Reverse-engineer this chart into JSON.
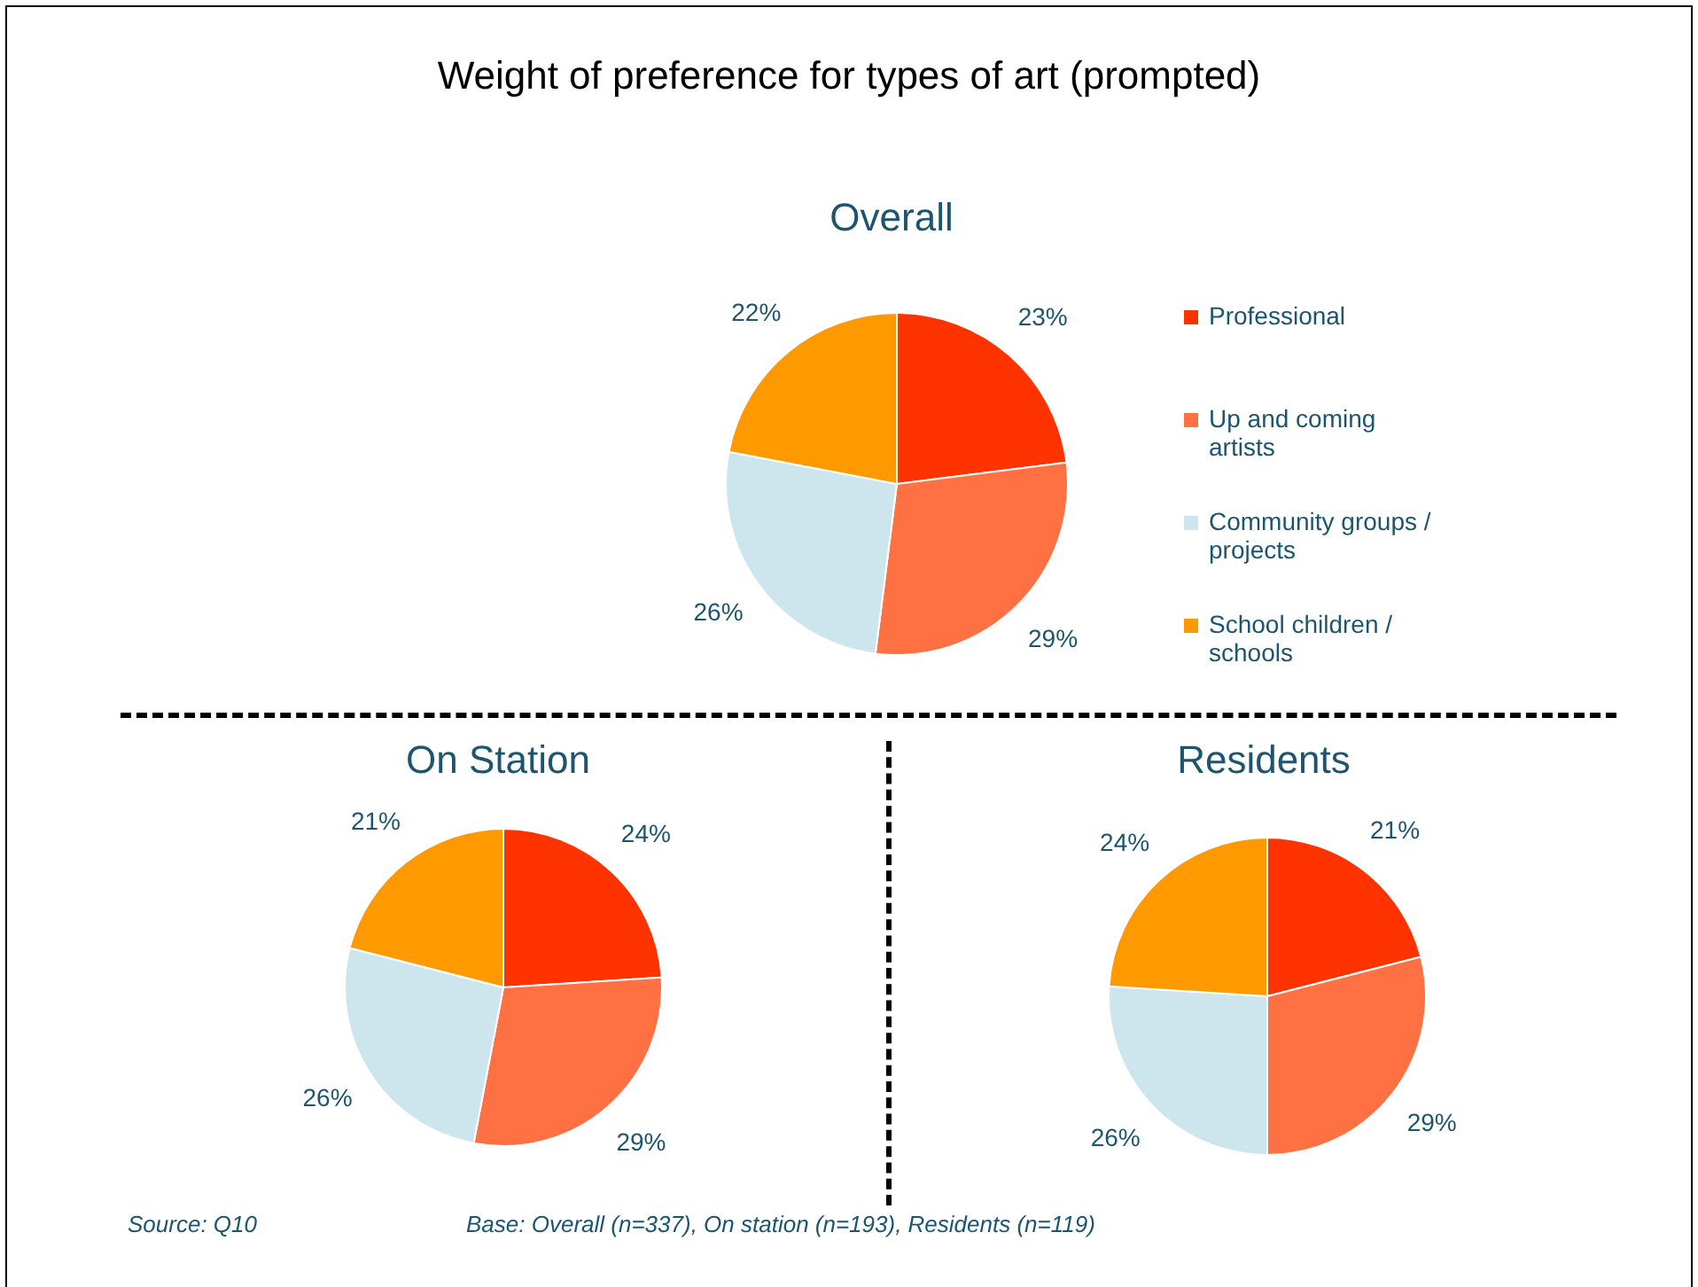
{
  "chart_data": [
    {
      "type": "pie",
      "title": "Weight of preference for types of art (prompted)",
      "subtitle": "Overall",
      "categories": [
        "Professional",
        "Up and coming artists",
        "Community groups / projects",
        "School children / schools"
      ],
      "values": [
        23,
        29,
        26,
        22
      ],
      "value_labels": [
        "23%",
        "29%",
        "26%",
        "22%"
      ],
      "colors": [
        "#ff3300",
        "#ff7043",
        "#cde5ec",
        "#ff9900"
      ],
      "legend": "right"
    },
    {
      "type": "pie",
      "subtitle": "On Station",
      "categories": [
        null,
        null,
        null,
        null
      ],
      "values": [
        24,
        29,
        26,
        21
      ],
      "value_labels": [
        "24%",
        "29%",
        "26%",
        "21%"
      ],
      "colors": [
        "#ff3300",
        "#ff7043",
        "#cde5ec",
        "#ff9900"
      ]
    },
    {
      "type": "pie",
      "subtitle": "Residents",
      "categories": [
        null,
        null,
        null,
        null
      ],
      "values": [
        21,
        29,
        26,
        24
      ],
      "value_labels": [
        "21%",
        "29%",
        "26%",
        "24%"
      ],
      "colors": [
        "#ff3300",
        "#ff7043",
        "#cde5ec",
        "#ff9900"
      ],
      "annotations": [
        "Source: Q10",
        "Base: Overall (n=337), On station (n=193), Residents (n=119)"
      ]
    }
  ]
}
